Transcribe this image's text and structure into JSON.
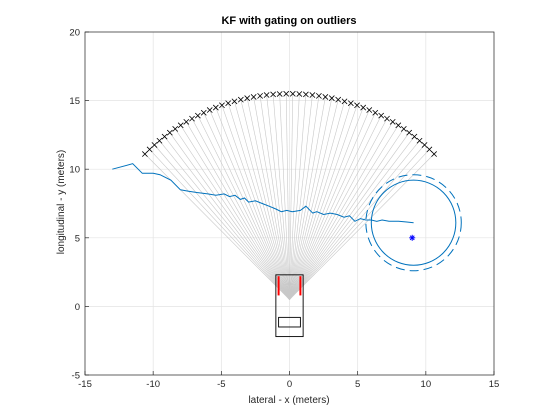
{
  "chart_data": {
    "type": "line",
    "title": "KF with gating on outliers",
    "xlabel": "lateral - x (meters)",
    "ylabel": "longitudinal - y (meters)",
    "xlim": [
      -15,
      15
    ],
    "ylim": [
      -5,
      20
    ],
    "xticks": [
      "-15",
      "-10",
      "-5",
      "0",
      "5",
      "10",
      "15"
    ],
    "yticks": [
      "-5",
      "0",
      "5",
      "10",
      "15",
      "20"
    ],
    "grid": true,
    "colors": {
      "track": "#0072bd",
      "rays": "#c8c8c8",
      "boundary": "#000000",
      "vehicle": "#000000",
      "vehicle_front": "#ff0000",
      "estimate": "#0000ff"
    },
    "sensor": {
      "origin": [
        0,
        0.5
      ],
      "range": 15,
      "fov_deg": [
        -45,
        45
      ],
      "ray_count": 50
    },
    "range_boundary_markers": "x",
    "track": {
      "x": [
        -13,
        -11.5,
        -10.8,
        -10,
        -9.5,
        -8.7,
        -8,
        -7.4,
        -6.8,
        -6,
        -5.4,
        -4.8,
        -4.4,
        -4,
        -3.6,
        -3.3,
        -3,
        -2.5,
        -2,
        -1.5,
        -1,
        -0.6,
        -0.2,
        0.2,
        0.8,
        1.2,
        1.7,
        2,
        2.5,
        3,
        3.5,
        4,
        4.4,
        4.8,
        5.2,
        5.6,
        6,
        6.4,
        6.8,
        7.3,
        8,
        8.6,
        9.1
      ],
      "y": [
        10,
        10.4,
        9.7,
        9.7,
        9.6,
        9.2,
        8.5,
        8.4,
        8.3,
        8.2,
        8.1,
        8.2,
        8.0,
        8.1,
        7.8,
        7.9,
        7.6,
        7.7,
        7.5,
        7.3,
        7.1,
        6.9,
        7.0,
        6.9,
        7.0,
        7.3,
        6.8,
        6.9,
        6.7,
        6.8,
        6.7,
        6.5,
        6.6,
        6.2,
        6.4,
        6.3,
        6.3,
        6.2,
        6.3,
        6.2,
        6.2,
        6.15,
        6.1
      ]
    },
    "estimate_marker": {
      "x": 9,
      "y": 5,
      "symbol": "*"
    },
    "ellipse_solid": {
      "cx": 9.1,
      "cy": 6.1,
      "radius": 3.1
    },
    "ellipse_dashed": {
      "cx": 9.1,
      "cy": 6.1,
      "radius": 3.5
    },
    "vehicle": {
      "body": {
        "x": [
          -1,
          1
        ],
        "y": [
          -2.2,
          2.3
        ]
      },
      "window": {
        "x": [
          -0.8,
          0.8
        ],
        "y": [
          -1.5,
          -0.8
        ]
      },
      "front_marks": {
        "y": [
          0.8,
          2.2
        ],
        "x": [
          -0.8,
          0.8
        ]
      }
    }
  }
}
